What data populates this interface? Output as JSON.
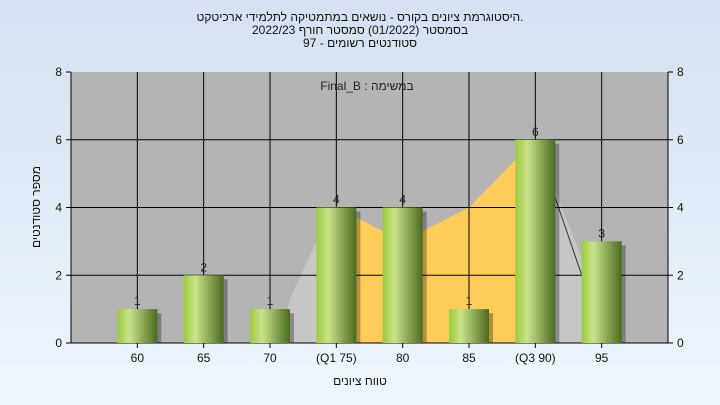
{
  "title_lines": [
    ".היסטוגרמת ציונים בקורס - נושאים במתמטיקה לתלמידי ארכיטקט",
    "בסמסטר  (01/2022)  סמסטר חורף 2022/23",
    "סטודנטים רשומים - 97"
  ],
  "chart_data": {
    "type": "bar",
    "categories": [
      "60",
      "65",
      "70",
      "(Q1 75)",
      "80",
      "85",
      "(Q3 90)",
      "95"
    ],
    "values": [
      1,
      2,
      1,
      4,
      4,
      1,
      6,
      3
    ],
    "annotation": "במשימה : Final_B",
    "xlabel": "טווח ציונים",
    "ylabel": "מספר סטודנטים",
    "ylim": [
      0,
      8
    ],
    "yticks": [
      0,
      2,
      4,
      6,
      8
    ],
    "grid": true,
    "colors": {
      "bar_light": "#c8e38a",
      "bar_dark": "#4a6a1e",
      "plot_bg": "#b4b4b4",
      "iqr_area": "#ffcc5a",
      "range_area": "#c6c6c6"
    }
  }
}
